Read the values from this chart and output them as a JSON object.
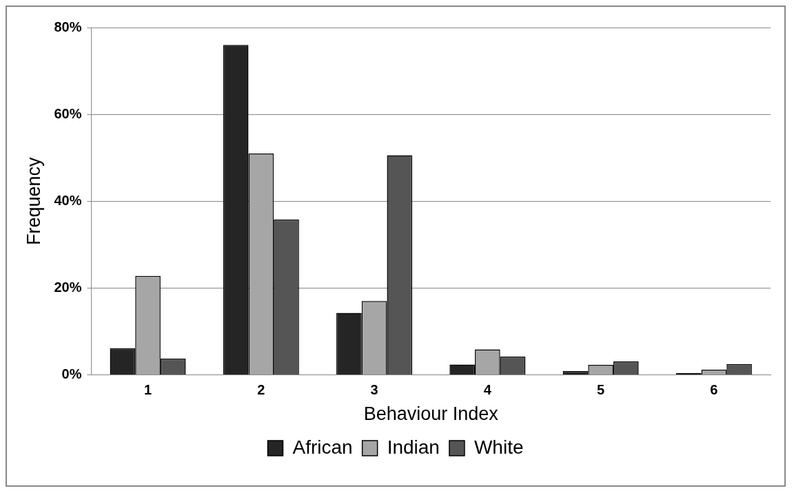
{
  "chart_data": {
    "type": "bar",
    "xlabel": "Behaviour Index",
    "ylabel": "Frequency",
    "categories": [
      "1",
      "2",
      "3",
      "4",
      "5",
      "6"
    ],
    "series": [
      {
        "name": "African",
        "color": "#252525",
        "values": [
          6.1,
          76.0,
          14.3,
          2.4,
          0.9,
          0.4
        ]
      },
      {
        "name": "Indian",
        "color": "#a6a6a6",
        "values": [
          22.8,
          51.0,
          17.0,
          5.9,
          2.3,
          1.2
        ]
      },
      {
        "name": "White",
        "color": "#555555",
        "values": [
          3.8,
          35.8,
          50.6,
          4.2,
          3.1,
          2.5
        ]
      }
    ],
    "ylim": [
      0,
      80
    ],
    "yticks": [
      {
        "value": 0,
        "label": "0%"
      },
      {
        "value": 20,
        "label": "20%"
      },
      {
        "value": 40,
        "label": "40%"
      },
      {
        "value": 60,
        "label": "60%"
      },
      {
        "value": 80,
        "label": "80%"
      }
    ],
    "grid": "y",
    "legend": "bottom"
  }
}
